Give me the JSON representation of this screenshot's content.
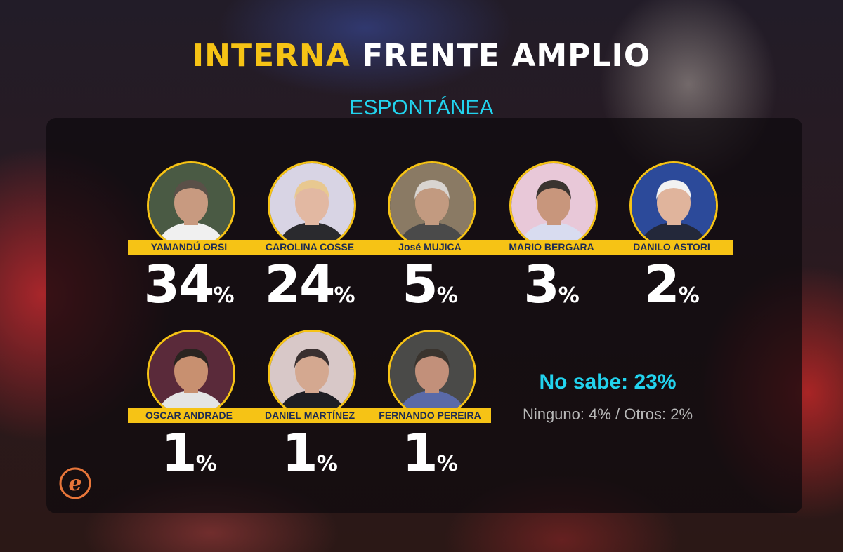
{
  "title": {
    "part1": "INTERNA",
    "part2": "FRENTE AMPLIO"
  },
  "subtitle": "ESPONTÁNEA",
  "colors": {
    "accent": "#f6c315",
    "highlight": "#22d3ee",
    "name_text": "#1c2a52"
  },
  "chart_data": {
    "type": "bar",
    "categories": [
      "YAMANDÚ ORSI",
      "CAROLINA COSSE",
      "José MUJICA",
      "MARIO BERGARA",
      "DANILO ASTORI",
      "OSCAR ANDRADE",
      "DANIEL MARTÍNEZ",
      "FERNANDO PEREIRA"
    ],
    "values": [
      34,
      24,
      5,
      3,
      2,
      1,
      1,
      1
    ],
    "unit": "%"
  },
  "candidates": [
    {
      "name": "YAMANDÚ ORSI",
      "value": "34",
      "unit": "%",
      "skin": "#c89a80",
      "hair": "#5a5048",
      "bg": "#4a5a44",
      "shirt": "#f0f0f0"
    },
    {
      "name": "CAROLINA COSSE",
      "value": "24",
      "unit": "%",
      "skin": "#e2b8a2",
      "hair": "#e8c890",
      "bg": "#d8d4e4",
      "shirt": "#2a2a2e"
    },
    {
      "name": "José MUJICA",
      "value": "5",
      "unit": "%",
      "skin": "#c29a80",
      "hair": "#d8d4d0",
      "bg": "#8a7a64",
      "shirt": "#4a4a4a"
    },
    {
      "name": "MARIO BERGARA",
      "value": "3",
      "unit": "%",
      "skin": "#c8967c",
      "hair": "#3a3430",
      "bg": "#e8c8d8",
      "shirt": "#d8dcf0"
    },
    {
      "name": "DANILO ASTORI",
      "value": "2",
      "unit": "%",
      "skin": "#e0b49c",
      "hair": "#f2f2f2",
      "bg": "#2c4a9a",
      "shirt": "#23283a"
    },
    {
      "name": "OSCAR ANDRADE",
      "value": "1",
      "unit": "%",
      "skin": "#c89070",
      "hair": "#2a2420",
      "bg": "#5a2a3a",
      "shirt": "#e4e4e4"
    },
    {
      "name": "DANIEL MARTÍNEZ",
      "value": "1",
      "unit": "%",
      "skin": "#d4a890",
      "hair": "#3a3030",
      "bg": "#d8c8c8",
      "shirt": "#1e1e24"
    },
    {
      "name": "FERNANDO PEREIRA",
      "value": "1",
      "unit": "%",
      "skin": "#c2907a",
      "hair": "#3a342e",
      "bg": "#4a4a48",
      "shirt": "#5a6aa8"
    }
  ],
  "summary": {
    "no_sabe": "No sabe: 23%",
    "otros": "Ninguno: 4% / Otros: 2%"
  },
  "logo": {
    "letter": "e"
  }
}
